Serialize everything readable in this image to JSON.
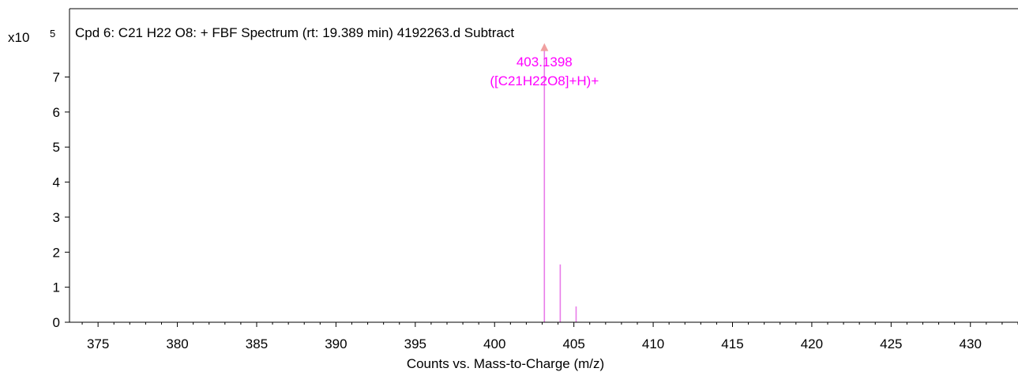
{
  "chart_data": {
    "type": "bar",
    "title": "Cpd 6: C21 H22 O8: + FBF Spectrum (rt: 19.389 min) 4192263.d  Subtract",
    "xlabel": "Counts vs. Mass-to-Charge (m/z)",
    "ylabel": "",
    "y_multiplier": {
      "base": "x10",
      "exponent": "5"
    },
    "xlim": [
      373.2,
      433.0
    ],
    "ylim": [
      0,
      8.95
    ],
    "x_ticks": [
      375,
      380,
      385,
      390,
      395,
      400,
      405,
      410,
      415,
      420,
      425,
      430
    ],
    "y_ticks": [
      0,
      1,
      2,
      3,
      4,
      5,
      6,
      7
    ],
    "grid": false,
    "legend": "none",
    "series": [
      {
        "x": [
          403.1398,
          404.14,
          405.14
        ],
        "values": [
          7.9,
          1.65,
          0.45
        ]
      }
    ],
    "annotations": [
      {
        "x": 403.1398,
        "lines": [
          "403.1398",
          "([C21H22O8]+H)+"
        ]
      }
    ],
    "colors": {
      "peak": "#e87be8",
      "annotation_text": "#ff00ff",
      "marker": "#f0a0a0",
      "axis": "#000000"
    }
  }
}
